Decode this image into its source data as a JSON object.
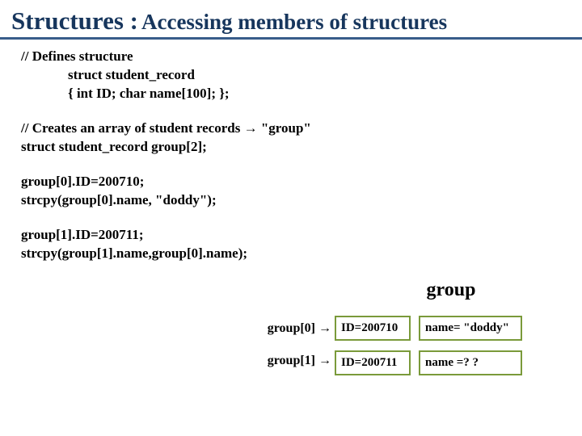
{
  "colors": {
    "title": "#17365d",
    "underline": "#385d8a",
    "text": "#000000",
    "cell_border": "#7a9a3a",
    "cell_text": "#000000"
  },
  "title": {
    "main": "Structures :",
    "sub": " Accessing members of structures"
  },
  "code": {
    "comment1": "// Defines structure",
    "line1": "struct student_record",
    "line2": "{  int ID;   char  name[100];   };",
    "comment2": "// Creates an array of student records → \"group\"",
    "line3": "struct student_record group[2];",
    "line4": "group[0].ID=200710;",
    "line5": "strcpy(group[0].name, \"doddy\");",
    "line6": "group[1].ID=200711;",
    "line7": "strcpy(group[1].name,group[0].name);"
  },
  "table": {
    "heading": "group",
    "rows": [
      {
        "label": "group[0] →",
        "id": "ID=200710",
        "name": "name= \"doddy\""
      },
      {
        "label": "group[1] →",
        "id": "ID=200711",
        "name": "name =? ?"
      }
    ]
  }
}
